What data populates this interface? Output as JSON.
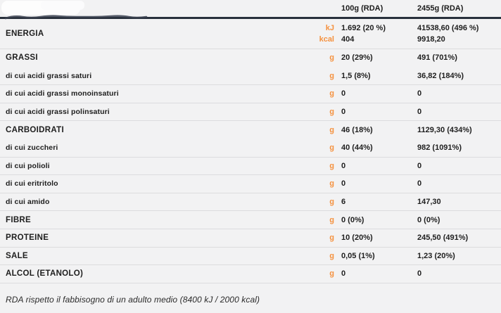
{
  "header": {
    "col1": "100g (RDA)",
    "col2": "2455g (RDA)"
  },
  "rows": [
    {
      "label": "ENERGIA",
      "major": true,
      "lines": [
        {
          "unit": "kJ",
          "v1": "1.692 (20 %)",
          "v2": "41538,60 (496 %)"
        },
        {
          "unit": "kcal",
          "v1": "404",
          "v2": "9918,20"
        }
      ]
    },
    {
      "label": "GRASSI",
      "major": true,
      "unit": "g",
      "v1": "20 (29%)",
      "v2": "491 (701%)"
    },
    {
      "label": "di cui acidi grassi saturi",
      "major": false,
      "unit": "g",
      "v1": "1,5 (8%)",
      "v2": "36,82 (184%)"
    },
    {
      "label": "di cui acidi grassi monoinsaturi",
      "major": false,
      "unit": "g",
      "v1": "0",
      "v2": "0"
    },
    {
      "label": "di cui acidi grassi polinsaturi",
      "major": false,
      "unit": "g",
      "v1": "0",
      "v2": "0"
    },
    {
      "label": "CARBOIDRATI",
      "major": true,
      "unit": "g",
      "v1": "46 (18%)",
      "v2": "1129,30 (434%)"
    },
    {
      "label": "di cui zuccheri",
      "major": false,
      "unit": "g",
      "v1": "40 (44%)",
      "v2": "982 (1091%)"
    },
    {
      "label": "di cui polioli",
      "major": false,
      "unit": "g",
      "v1": "0",
      "v2": "0"
    },
    {
      "label": "di cui eritritolo",
      "major": false,
      "unit": "g",
      "v1": "0",
      "v2": "0"
    },
    {
      "label": "di cui amido",
      "major": false,
      "unit": "g",
      "v1": "6",
      "v2": "147,30"
    },
    {
      "label": "FIBRE",
      "major": true,
      "unit": "g",
      "v1": "0 (0%)",
      "v2": "0 (0%)"
    },
    {
      "label": "PROTEINE",
      "major": true,
      "unit": "g",
      "v1": "10 (20%)",
      "v2": "245,50 (491%)"
    },
    {
      "label": "SALE",
      "major": true,
      "unit": "g",
      "v1": "0,05 (1%)",
      "v2": "1,23 (20%)"
    },
    {
      "label": "ALCOL (ETANOLO)",
      "major": true,
      "unit": "g",
      "v1": "0",
      "v2": "0"
    }
  ],
  "footer": "RDA rispetto il fabbisogno di un adulto medio (8400 kJ / 2000 kcal)",
  "colors": {
    "accent_orange": "#f5913e",
    "header_rule": "#28303c",
    "background": "#f2f2f3",
    "text": "#1e1e1e",
    "row_divider": "#dcdcde"
  }
}
